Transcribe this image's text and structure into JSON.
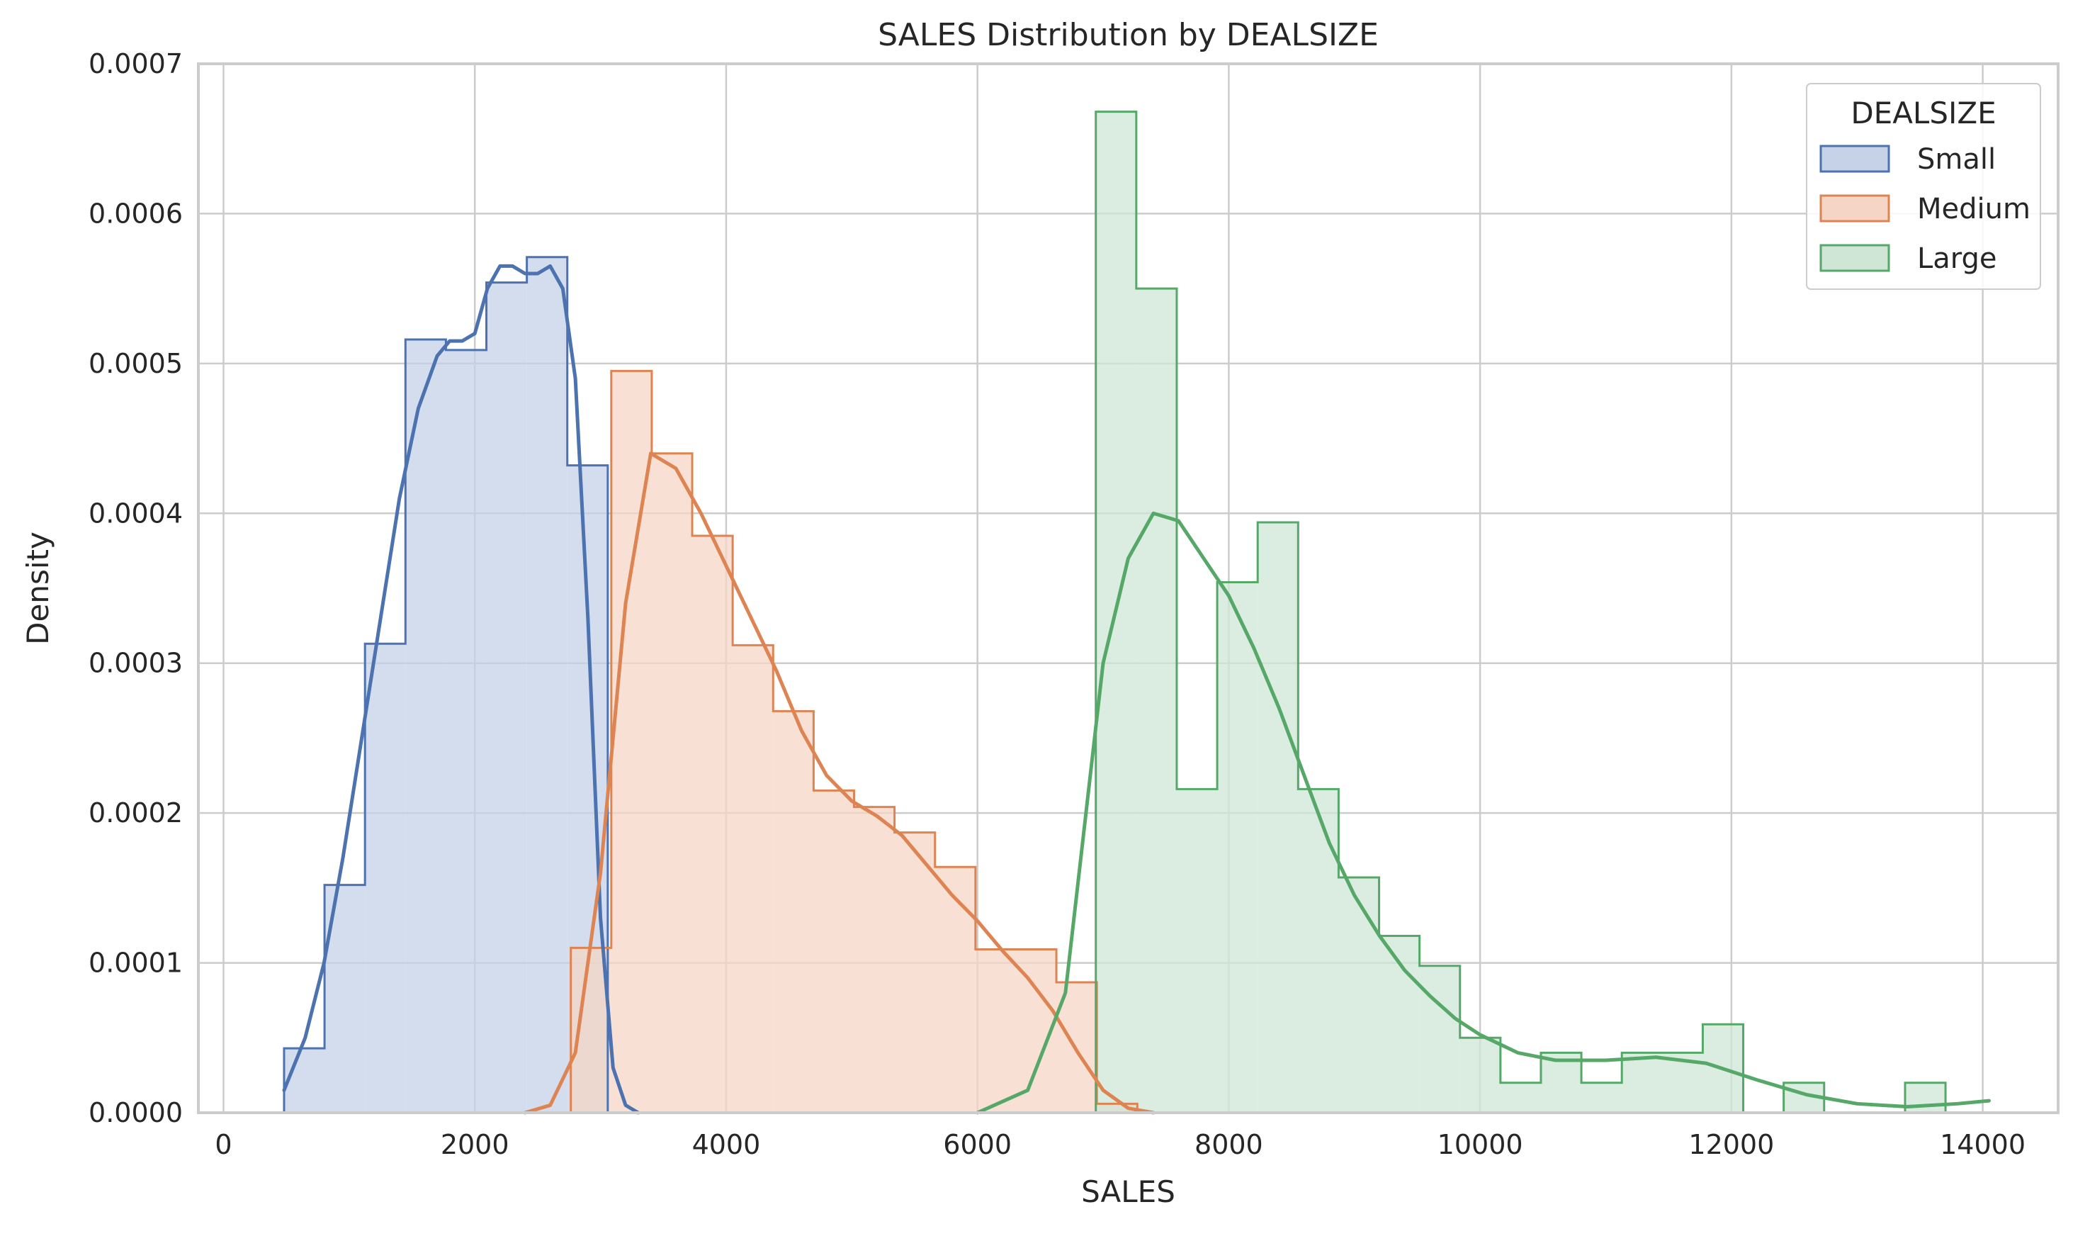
{
  "chart_data": {
    "type": "histogram",
    "title": "SALES Distribution by DEALSIZE",
    "xlabel": "SALES",
    "ylabel": "Density",
    "xlim": [
      -200,
      14600
    ],
    "ylim": [
      0,
      0.0007
    ],
    "xticks": [
      0,
      2000,
      4000,
      6000,
      8000,
      10000,
      12000,
      14000
    ],
    "yticks": [
      0.0,
      0.0001,
      0.0002,
      0.0003,
      0.0004,
      0.0005,
      0.0006,
      0.0007
    ],
    "xtick_labels": [
      "0",
      "2000",
      "4000",
      "6000",
      "8000",
      "10000",
      "12000",
      "14000"
    ],
    "ytick_labels": [
      "0.0000",
      "0.0001",
      "0.0002",
      "0.0003",
      "0.0004",
      "0.0005",
      "0.0006",
      "0.0007"
    ],
    "grid": true,
    "legend": {
      "title": "DEALSIZE",
      "placement": "top-right"
    },
    "bin_width": 322,
    "series": [
      {
        "name": "Small",
        "color": "#4c72b0",
        "fill": "#c6d2e8",
        "bin_start": 482,
        "densities": [
          4.3e-05,
          0.000152,
          0.000313,
          0.000516,
          0.000509,
          0.000554,
          0.000571,
          0.000432,
          0.0,
          0.0
        ],
        "kde": [
          [
            482,
            1.5e-05
          ],
          [
            650,
            5e-05
          ],
          [
            800,
            0.0001
          ],
          [
            950,
            0.00017
          ],
          [
            1100,
            0.00025
          ],
          [
            1250,
            0.00033
          ],
          [
            1400,
            0.00041
          ],
          [
            1550,
            0.00047
          ],
          [
            1700,
            0.000505
          ],
          [
            1800,
            0.000515
          ],
          [
            1900,
            0.000515
          ],
          [
            2000,
            0.00052
          ],
          [
            2100,
            0.00055
          ],
          [
            2200,
            0.000565
          ],
          [
            2300,
            0.000565
          ],
          [
            2400,
            0.00056
          ],
          [
            2500,
            0.00056
          ],
          [
            2600,
            0.000565
          ],
          [
            2700,
            0.00055
          ],
          [
            2800,
            0.00049
          ],
          [
            2900,
            0.00033
          ],
          [
            3000,
            0.00013
          ],
          [
            3100,
            3e-05
          ],
          [
            3200,
            5e-06
          ],
          [
            3300,
            0.0
          ]
        ]
      },
      {
        "name": "Medium",
        "color": "#dd8452",
        "fill": "#f5d6c6",
        "bin_start": 2764,
        "densities": [
          0.00011,
          0.000495,
          0.00044,
          0.000385,
          0.000312,
          0.000268,
          0.000215,
          0.000204,
          0.000187,
          0.000164,
          0.000109,
          0.000109,
          8.7e-05,
          6e-06
        ],
        "kde": [
          [
            2400,
            0.0
          ],
          [
            2600,
            5e-06
          ],
          [
            2800,
            4e-05
          ],
          [
            3000,
            0.00016
          ],
          [
            3200,
            0.00034
          ],
          [
            3400,
            0.00044
          ],
          [
            3600,
            0.00043
          ],
          [
            3800,
            0.0004
          ],
          [
            4000,
            0.000365
          ],
          [
            4200,
            0.00033
          ],
          [
            4400,
            0.000295
          ],
          [
            4600,
            0.000255
          ],
          [
            4800,
            0.000225
          ],
          [
            5000,
            0.000208
          ],
          [
            5200,
            0.000198
          ],
          [
            5400,
            0.000185
          ],
          [
            5600,
            0.000165
          ],
          [
            5800,
            0.000145
          ],
          [
            6000,
            0.000128
          ],
          [
            6200,
            0.000108
          ],
          [
            6400,
            9e-05
          ],
          [
            6600,
            6.8e-05
          ],
          [
            6800,
            4e-05
          ],
          [
            7000,
            1.5e-05
          ],
          [
            7200,
            3e-06
          ],
          [
            7400,
            0.0
          ]
        ]
      },
      {
        "name": "Large",
        "color": "#55a868",
        "fill": "#cfe5d5",
        "bin_start": 6942,
        "densities": [
          0.000668,
          0.00055,
          0.000216,
          0.000354,
          0.000394,
          0.000216,
          0.000157,
          0.000118,
          9.8e-05,
          5e-05,
          2e-05,
          4e-05,
          2e-05,
          4e-05,
          4e-05,
          5.9e-05,
          0.0,
          2e-05,
          0.0,
          0.0,
          2e-05
        ],
        "kde": [
          [
            6000,
            0.0
          ],
          [
            6400,
            1.5e-05
          ],
          [
            6700,
            8e-05
          ],
          [
            7000,
            0.0003
          ],
          [
            7200,
            0.00037
          ],
          [
            7400,
            0.0004
          ],
          [
            7600,
            0.000395
          ],
          [
            7800,
            0.00037
          ],
          [
            8000,
            0.000345
          ],
          [
            8200,
            0.00031
          ],
          [
            8400,
            0.00027
          ],
          [
            8600,
            0.000225
          ],
          [
            8800,
            0.00018
          ],
          [
            9000,
            0.000145
          ],
          [
            9200,
            0.000118
          ],
          [
            9400,
            9.5e-05
          ],
          [
            9600,
            7.8e-05
          ],
          [
            9800,
            6.3e-05
          ],
          [
            10000,
            5.2e-05
          ],
          [
            10300,
            4e-05
          ],
          [
            10600,
            3.5e-05
          ],
          [
            11000,
            3.5e-05
          ],
          [
            11400,
            3.7e-05
          ],
          [
            11800,
            3.3e-05
          ],
          [
            12200,
            2.2e-05
          ],
          [
            12600,
            1.2e-05
          ],
          [
            13000,
            6e-06
          ],
          [
            13400,
            4e-06
          ],
          [
            13800,
            6e-06
          ],
          [
            14050,
            8e-06
          ]
        ]
      }
    ]
  }
}
